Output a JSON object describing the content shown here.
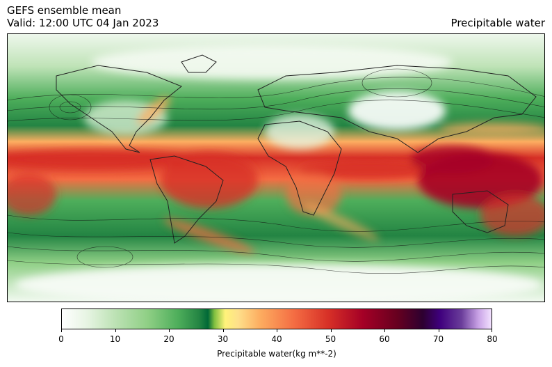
{
  "header": {
    "title_line1": "GEFS ensemble mean",
    "title_line2": "Valid: 12:00 UTC 04 Jan 2023",
    "variable": "Precipitable water"
  },
  "colorbar": {
    "ticks": [
      "0",
      "10",
      "20",
      "30",
      "40",
      "50",
      "60",
      "70",
      "80"
    ],
    "tick_values": [
      0,
      10,
      20,
      30,
      40,
      50,
      60,
      70,
      80
    ],
    "min": 0,
    "max": 80,
    "label": "Precipitable water(kg m**-2)"
  },
  "colors": {
    "dry": "#ffffff",
    "green": "#238443",
    "yellow": "#fee08b",
    "red": "#d73027",
    "darkred": "#a50026",
    "purple": "#3f007d"
  }
}
